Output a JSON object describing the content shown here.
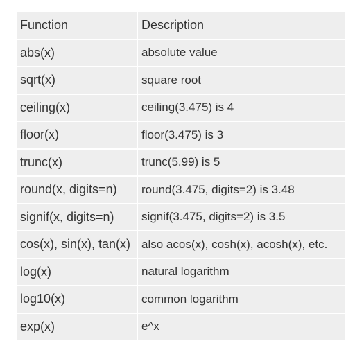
{
  "table": {
    "headers": {
      "function": "Function",
      "description": "Description"
    },
    "rows": [
      {
        "function": "abs(x)",
        "description": "absolute value"
      },
      {
        "function": "sqrt(x)",
        "description": "square root"
      },
      {
        "function": "ceiling(x)",
        "description": "ceiling(3.475) is 4"
      },
      {
        "function": "floor(x)",
        "description": "floor(3.475) is 3"
      },
      {
        "function": "trunc(x)",
        "description": "trunc(5.99) is 5"
      },
      {
        "function": "round(x, digits=n)",
        "description": "round(3.475, digits=2) is 3.48"
      },
      {
        "function": "signif(x, digits=n)",
        "description": "signif(3.475, digits=2) is 3.5"
      },
      {
        "function": "cos(x), sin(x), tan(x)",
        "description": "also acos(x), cosh(x), acosh(x), etc."
      },
      {
        "function": "log(x)",
        "description": "natural logarithm"
      },
      {
        "function": "log10(x)",
        "description": "common logarithm"
      },
      {
        "function": "exp(x)",
        "description": "e^x"
      }
    ]
  }
}
